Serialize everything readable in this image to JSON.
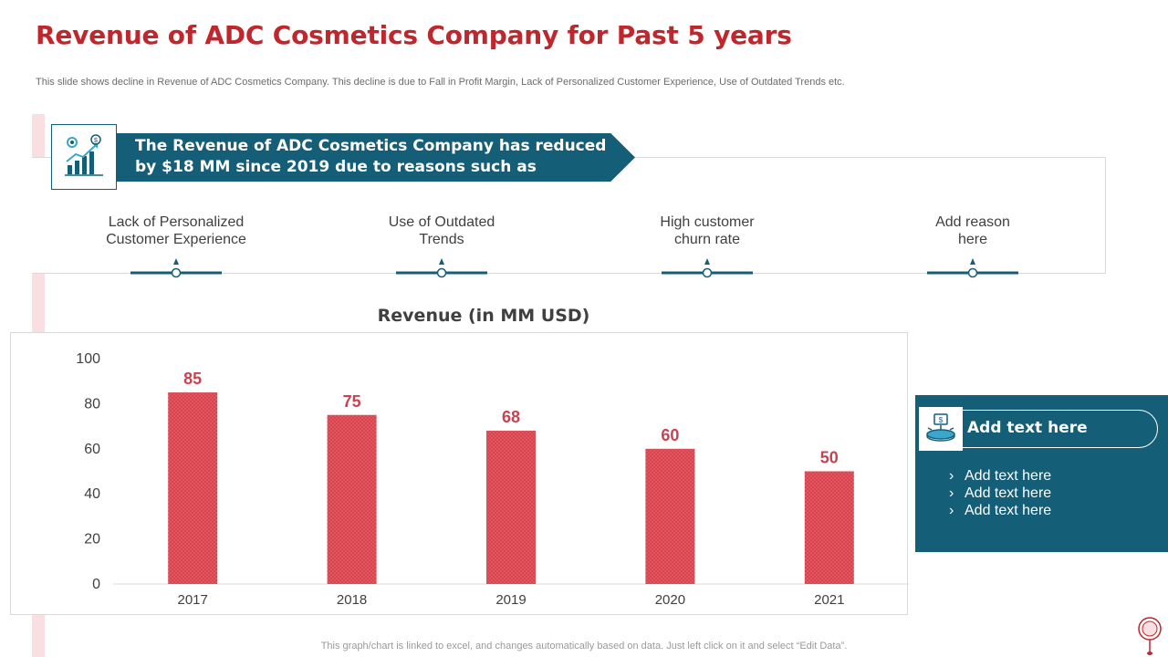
{
  "page": {
    "title": "Revenue of ADC Cosmetics Company for Past 5 years",
    "subtitle": "This slide shows decline in Revenue of ADC Cosmetics Company. This decline is due to  Fall in Profit Margin, Lack of Personalized Customer Experience, Use of Outdated Trends etc."
  },
  "banner": {
    "line1": "The Revenue of ADC Cosmetics Company has reduced",
    "line2": "by $18 MM since 2019 due to reasons such as"
  },
  "reasons": [
    {
      "line1": "Lack of Personalized",
      "line2": "Customer Experience"
    },
    {
      "line1": "Use of Outdated",
      "line2": "Trends"
    },
    {
      "line1": "High customer",
      "line2": "churn rate"
    },
    {
      "line1": "Add reason",
      "line2": "here"
    }
  ],
  "side_panel": {
    "heading": "Add text here",
    "items": [
      "Add text here",
      "Add text here",
      "Add text here"
    ],
    "bullet": "›"
  },
  "footer_note": "This graph/chart is linked to excel,  and changes automatically based on data. Just left click on it and select “Edit Data”.",
  "colors": {
    "title_red": "#c0272d",
    "bar_red": "#d9444f",
    "label_red": "#c84250",
    "teal": "#155e78",
    "pink_band": "#f9dfe2"
  },
  "chart_data": {
    "type": "bar",
    "title": "Revenue (in MM USD)",
    "categories": [
      "2017",
      "2018",
      "2019",
      "2020",
      "2021"
    ],
    "values": [
      85,
      75,
      68,
      60,
      50
    ],
    "ylim": [
      0,
      100
    ],
    "yticks": [
      0,
      20,
      40,
      60,
      80,
      100
    ],
    "xlabel": "",
    "ylabel": "",
    "grid": false,
    "data_labels": true
  }
}
